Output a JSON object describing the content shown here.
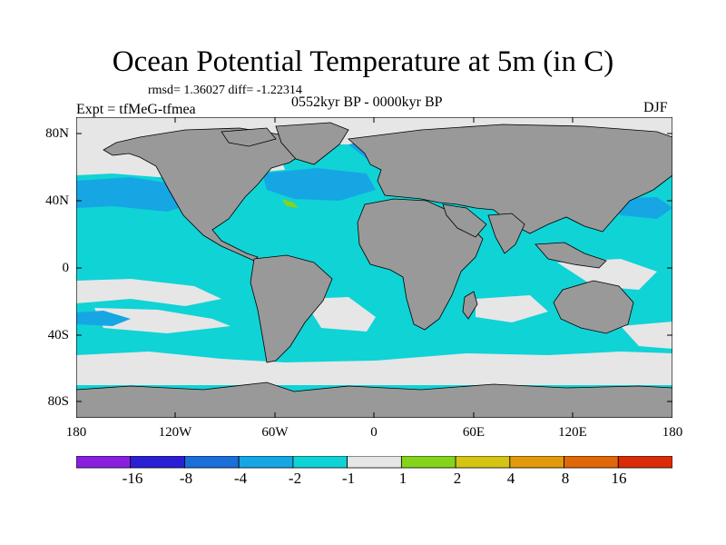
{
  "title": "Ocean Potential Temperature at 5m (in C)",
  "stats": "rmsd= 1.36027 diff= -1.22314",
  "experiment": "Expt = tfMeG-tfmea",
  "period": "0552kyr BP - 0000kyr BP",
  "season": "DJF",
  "lat_labels": [
    "80N",
    "40N",
    "0",
    "40S",
    "80S"
  ],
  "lon_labels": [
    "180",
    "120W",
    "60W",
    "0",
    "60E",
    "120E",
    "180"
  ],
  "colorbar": {
    "labels": [
      "-16",
      "-8",
      "-4",
      "-2",
      "-1",
      "1",
      "2",
      "4",
      "8",
      "16"
    ],
    "colors": [
      "#8a1fe0",
      "#2b1fd6",
      "#1b6fd9",
      "#16a6e4",
      "#10d3d6",
      "#e6e6e6",
      "#84d41c",
      "#d6c414",
      "#e09a0c",
      "#e0680a",
      "#db2c08"
    ]
  },
  "map_colors": {
    "ocean_base": "#10d3d6",
    "near_zero": "#e6e6e6",
    "cool": "#16a6e4",
    "land": "#999999",
    "warm_patch": "#84d41c"
  }
}
